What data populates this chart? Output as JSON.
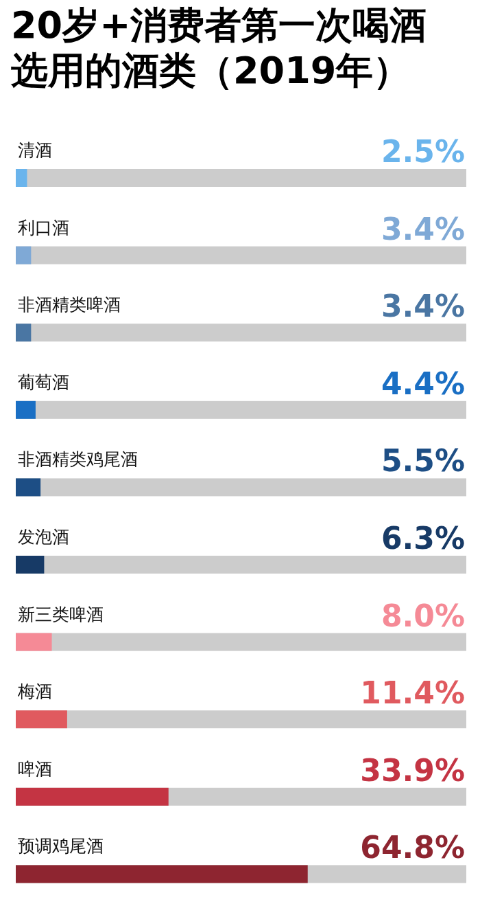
{
  "chart_data": {
    "type": "bar",
    "orientation": "horizontal",
    "title": "20岁+消费者第一次喝酒选用的酒类（2019年）",
    "categories": [
      "清酒",
      "利口酒",
      "非酒精类啤酒",
      "葡萄酒",
      "非酒精类鸡尾酒",
      "发泡酒",
      "新三类啤酒",
      "梅酒",
      "啤酒",
      "预调鸡尾酒"
    ],
    "values": [
      2.5,
      3.4,
      3.4,
      4.4,
      5.5,
      6.3,
      8.0,
      11.4,
      33.9,
      64.8
    ],
    "value_labels": [
      "2.5%",
      "3.4%",
      "3.4%",
      "4.4%",
      "5.5%",
      "6.3%",
      "8.0%",
      "11.4%",
      "33.9%",
      "64.8%"
    ],
    "colors": [
      "#6ab4ec",
      "#7fa9d6",
      "#4a76a3",
      "#1a6fc4",
      "#1d4e85",
      "#173a66",
      "#f58a96",
      "#e05a5f",
      "#c43443",
      "#8e2530"
    ],
    "xlim": [
      0,
      100
    ],
    "tick_labels": false
  }
}
